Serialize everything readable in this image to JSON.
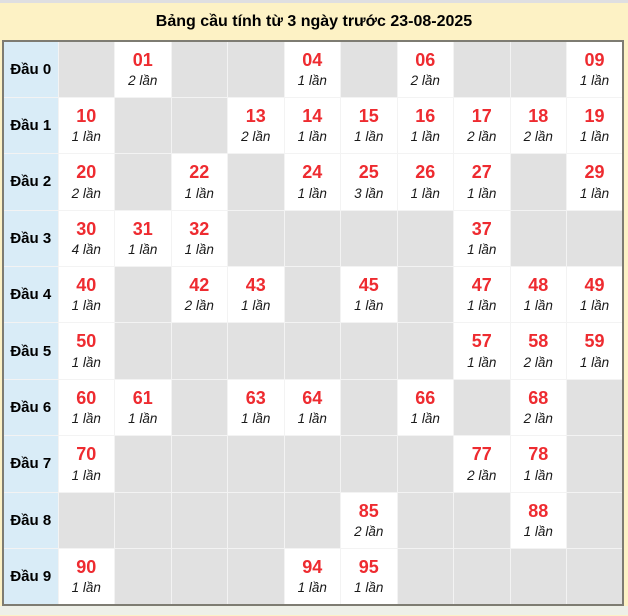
{
  "title": "Bảng cầu tính từ 3 ngày trước 23-08-2025",
  "colors": {
    "page_background": "#fdf2c5",
    "label_cell_background": "#d9ecf7",
    "empty_cell_background": "#e1e1e1",
    "filled_cell_background": "#ffffff",
    "number_text": "#ee2b30",
    "count_text": "#1a1a1a",
    "table_outer_border": "#7e7c72",
    "grid_line": "#f3f3f3",
    "top_strip": "#dfdfe1",
    "bottom_strip": "#eef0e8"
  },
  "table": {
    "columns_per_row": 10,
    "rows": [
      {
        "label": "Đầu 0",
        "cells": [
          null,
          {
            "number": "01",
            "times": "2 lần"
          },
          null,
          null,
          {
            "number": "04",
            "times": "1 lần"
          },
          null,
          {
            "number": "06",
            "times": "2 lần"
          },
          null,
          null,
          {
            "number": "09",
            "times": "1 lần"
          }
        ]
      },
      {
        "label": "Đầu 1",
        "cells": [
          {
            "number": "10",
            "times": "1 lần"
          },
          null,
          null,
          {
            "number": "13",
            "times": "2 lần"
          },
          {
            "number": "14",
            "times": "1 lần"
          },
          {
            "number": "15",
            "times": "1 lần"
          },
          {
            "number": "16",
            "times": "1 lần"
          },
          {
            "number": "17",
            "times": "2 lần"
          },
          {
            "number": "18",
            "times": "2 lần"
          },
          {
            "number": "19",
            "times": "1 lần"
          }
        ]
      },
      {
        "label": "Đầu 2",
        "cells": [
          {
            "number": "20",
            "times": "2 lần"
          },
          null,
          {
            "number": "22",
            "times": "1 lần"
          },
          null,
          {
            "number": "24",
            "times": "1 lần"
          },
          {
            "number": "25",
            "times": "3 lần"
          },
          {
            "number": "26",
            "times": "1 lần"
          },
          {
            "number": "27",
            "times": "1 lần"
          },
          null,
          {
            "number": "29",
            "times": "1 lần"
          }
        ]
      },
      {
        "label": "Đầu 3",
        "cells": [
          {
            "number": "30",
            "times": "4 lần"
          },
          {
            "number": "31",
            "times": "1 lần"
          },
          {
            "number": "32",
            "times": "1 lần"
          },
          null,
          null,
          null,
          null,
          {
            "number": "37",
            "times": "1 lần"
          },
          null,
          null
        ]
      },
      {
        "label": "Đầu 4",
        "cells": [
          {
            "number": "40",
            "times": "1 lần"
          },
          null,
          {
            "number": "42",
            "times": "2 lần"
          },
          {
            "number": "43",
            "times": "1 lần"
          },
          null,
          {
            "number": "45",
            "times": "1 lần"
          },
          null,
          {
            "number": "47",
            "times": "1 lần"
          },
          {
            "number": "48",
            "times": "1 lần"
          },
          {
            "number": "49",
            "times": "1 lần"
          }
        ]
      },
      {
        "label": "Đầu 5",
        "cells": [
          {
            "number": "50",
            "times": "1 lần"
          },
          null,
          null,
          null,
          null,
          null,
          null,
          {
            "number": "57",
            "times": "1 lần"
          },
          {
            "number": "58",
            "times": "2 lần"
          },
          {
            "number": "59",
            "times": "1 lần"
          }
        ]
      },
      {
        "label": "Đầu 6",
        "cells": [
          {
            "number": "60",
            "times": "1 lần"
          },
          {
            "number": "61",
            "times": "1 lần"
          },
          null,
          {
            "number": "63",
            "times": "1 lần"
          },
          {
            "number": "64",
            "times": "1 lần"
          },
          null,
          {
            "number": "66",
            "times": "1 lần"
          },
          null,
          {
            "number": "68",
            "times": "2 lần"
          },
          null
        ]
      },
      {
        "label": "Đầu 7",
        "cells": [
          {
            "number": "70",
            "times": "1 lần"
          },
          null,
          null,
          null,
          null,
          null,
          null,
          {
            "number": "77",
            "times": "2 lần"
          },
          {
            "number": "78",
            "times": "1 lần"
          },
          null
        ]
      },
      {
        "label": "Đầu 8",
        "cells": [
          null,
          null,
          null,
          null,
          null,
          {
            "number": "85",
            "times": "2 lần"
          },
          null,
          null,
          {
            "number": "88",
            "times": "1 lần"
          },
          null
        ]
      },
      {
        "label": "Đầu 9",
        "cells": [
          {
            "number": "90",
            "times": "1 lần"
          },
          null,
          null,
          null,
          {
            "number": "94",
            "times": "1 lần"
          },
          {
            "number": "95",
            "times": "1 lần"
          },
          null,
          null,
          null,
          null
        ]
      }
    ]
  }
}
